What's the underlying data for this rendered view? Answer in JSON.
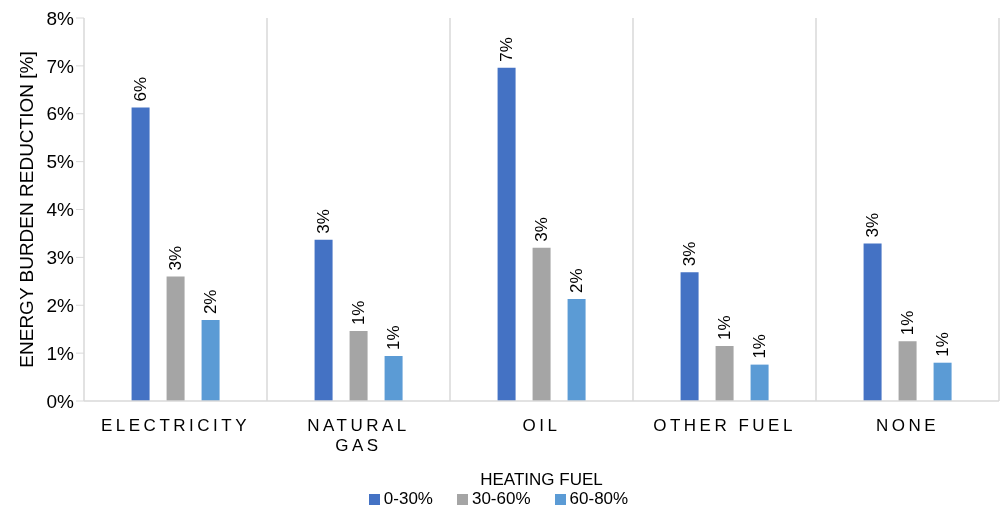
{
  "chart_data": {
    "type": "bar",
    "xlabel": "HEATING FUEL",
    "ylabel": "ENERGY BURDEN REDUCTION [%]",
    "categories": [
      "ELECTRICITY",
      "NATURAL GAS",
      "OIL",
      "OTHER FUEL",
      "NONE"
    ],
    "series": [
      {
        "name": "0-30%",
        "color": "#4472c4",
        "values": [
          6.13,
          3.37,
          6.96,
          2.69,
          3.29
        ],
        "value_labels": [
          "6%",
          "3%",
          "7%",
          "3%",
          "3%"
        ]
      },
      {
        "name": "30-60%",
        "color": "#a5a5a5",
        "values": [
          2.6,
          1.46,
          3.2,
          1.15,
          1.25
        ],
        "value_labels": [
          "3%",
          "1%",
          "3%",
          "1%",
          "1%"
        ]
      },
      {
        "name": "60-80%",
        "color": "#5b9bd5",
        "values": [
          1.69,
          0.94,
          2.13,
          0.76,
          0.8
        ],
        "value_labels": [
          "2%",
          "1%",
          "2%",
          "1%",
          "1%"
        ]
      }
    ],
    "ylim": [
      0,
      8
    ],
    "yticks": [
      {
        "value": 0,
        "label": "0%"
      },
      {
        "value": 1,
        "label": "1%"
      },
      {
        "value": 2,
        "label": "2%"
      },
      {
        "value": 3,
        "label": "3%"
      },
      {
        "value": 4,
        "label": "4%"
      },
      {
        "value": 5,
        "label": "5%"
      },
      {
        "value": 6,
        "label": "6%"
      },
      {
        "value": 7,
        "label": "7%"
      },
      {
        "value": 8,
        "label": "8%"
      }
    ],
    "grid": "x",
    "legend": "bottom"
  }
}
